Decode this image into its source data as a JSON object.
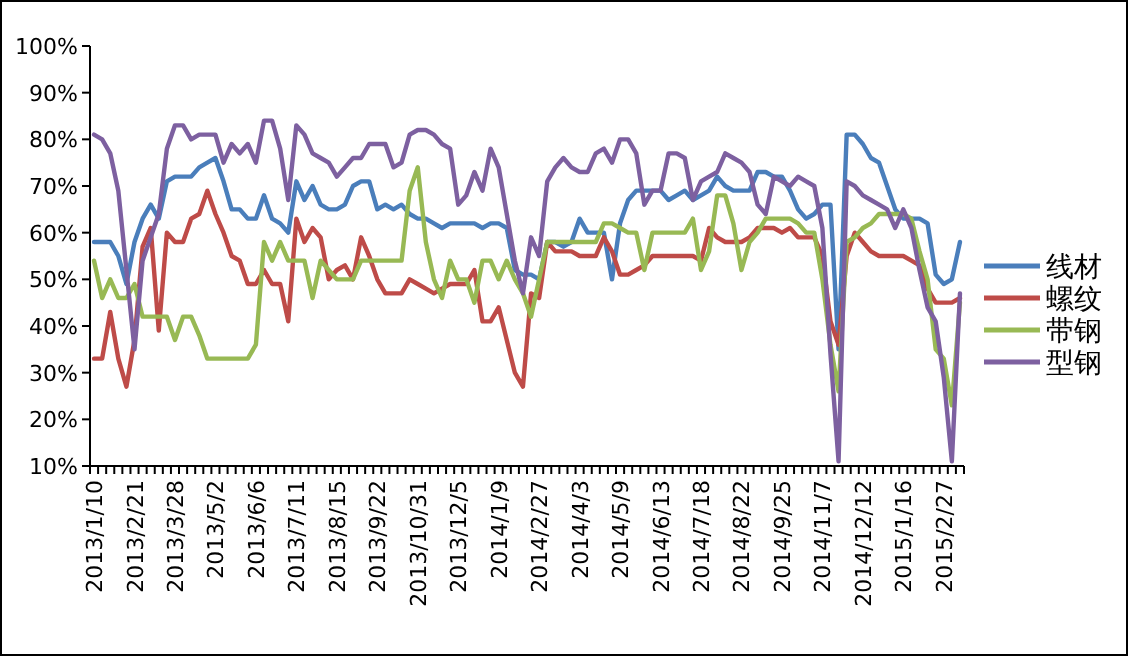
{
  "chart_data": {
    "type": "line",
    "categories": [
      "2013/1/10",
      null,
      null,
      null,
      null,
      "2013/2/21",
      null,
      null,
      null,
      null,
      "2013/3/28",
      null,
      null,
      null,
      null,
      "2013/5/2",
      null,
      null,
      null,
      null,
      "2013/6/6",
      null,
      null,
      null,
      null,
      "2013/7/11",
      null,
      null,
      null,
      null,
      "2013/8/15",
      null,
      null,
      null,
      null,
      "2013/9/22",
      null,
      null,
      null,
      null,
      "2013/10/31",
      null,
      null,
      null,
      null,
      "2013/12/5",
      null,
      null,
      null,
      null,
      "2014/1/9",
      null,
      null,
      null,
      null,
      "2014/2/27",
      null,
      null,
      null,
      null,
      "2014/4/3",
      null,
      null,
      null,
      null,
      "2014/5/9",
      null,
      null,
      null,
      null,
      "2014/6/13",
      null,
      null,
      null,
      null,
      "2014/7/18",
      null,
      null,
      null,
      null,
      "2014/8/22",
      null,
      null,
      null,
      null,
      "2014/9/25",
      null,
      null,
      null,
      null,
      "2014/11/7",
      null,
      null,
      null,
      null,
      "2014/12/12",
      null,
      null,
      null,
      null,
      "2015/1/16",
      null,
      null,
      null,
      null,
      "2015/2/27",
      null,
      null
    ],
    "series": [
      {
        "name": "线材",
        "color": "#4a7ebb",
        "values": [
          58,
          58,
          58,
          55,
          49,
          58,
          63,
          66,
          63,
          71,
          72,
          72,
          72,
          74,
          75,
          76,
          71,
          65,
          65,
          63,
          63,
          68,
          63,
          62,
          60,
          71,
          67,
          70,
          66,
          65,
          65,
          66,
          70,
          71,
          71,
          65,
          66,
          65,
          66,
          64,
          63,
          63,
          62,
          61,
          62,
          62,
          62,
          62,
          61,
          62,
          62,
          61,
          52,
          51,
          51,
          50,
          58,
          58,
          57,
          58,
          63,
          60,
          60,
          60,
          50,
          62,
          67,
          69,
          69,
          69,
          69,
          67,
          68,
          69,
          67,
          68,
          69,
          72,
          70,
          69,
          69,
          69,
          73,
          73,
          72,
          72,
          69,
          65,
          63,
          64,
          66,
          66,
          35,
          81,
          81,
          79,
          76,
          75,
          70,
          65,
          63,
          63,
          63,
          62,
          51,
          49,
          50,
          58
        ]
      },
      {
        "name": "螺纹",
        "color": "#be4b48",
        "values": [
          33,
          33,
          43,
          33,
          27,
          37,
          57,
          61,
          39,
          60,
          58,
          58,
          63,
          64,
          69,
          64,
          60,
          55,
          54,
          49,
          49,
          52,
          49,
          49,
          41,
          63,
          58,
          61,
          59,
          50,
          52,
          53,
          50,
          59,
          55,
          50,
          47,
          47,
          47,
          50,
          49,
          48,
          47,
          48,
          49,
          49,
          49,
          52,
          41,
          41,
          44,
          37,
          30,
          27,
          47,
          46,
          58,
          56,
          56,
          56,
          55,
          55,
          55,
          59,
          56,
          51,
          51,
          52,
          53,
          55,
          55,
          55,
          55,
          55,
          55,
          54,
          61,
          59,
          58,
          58,
          58,
          59,
          61,
          61,
          61,
          60,
          61,
          59,
          59,
          59,
          55,
          41,
          36,
          55,
          60,
          58,
          56,
          55,
          55,
          55,
          55,
          54,
          53,
          48,
          45,
          45,
          45,
          46
        ]
      },
      {
        "name": "带钢",
        "color": "#98b954",
        "values": [
          54,
          46,
          50,
          46,
          46,
          49,
          42,
          42,
          42,
          42,
          37,
          42,
          42,
          38,
          33,
          33,
          33,
          33,
          33,
          33,
          36,
          58,
          54,
          58,
          54,
          54,
          54,
          46,
          54,
          52,
          50,
          50,
          50,
          54,
          54,
          54,
          54,
          54,
          54,
          69,
          74,
          58,
          50,
          46,
          54,
          50,
          50,
          45,
          54,
          54,
          50,
          54,
          50,
          47,
          42,
          50,
          58,
          58,
          58,
          58,
          58,
          58,
          58,
          62,
          62,
          61,
          60,
          60,
          52,
          60,
          60,
          60,
          60,
          60,
          63,
          52,
          56,
          68,
          68,
          62,
          52,
          58,
          60,
          63,
          63,
          63,
          63,
          62,
          60,
          60,
          50,
          36,
          26,
          58,
          59,
          61,
          62,
          64,
          64,
          64,
          64,
          63,
          56,
          50,
          35,
          33,
          23,
          45
        ]
      },
      {
        "name": "型钢",
        "color": "#7d60a0",
        "values": [
          81,
          80,
          77,
          69,
          52,
          35,
          54,
          59,
          64,
          78,
          83,
          83,
          80,
          81,
          81,
          81,
          75,
          79,
          77,
          79,
          75,
          84,
          84,
          78,
          67,
          83,
          81,
          77,
          76,
          75,
          72,
          74,
          76,
          76,
          79,
          79,
          79,
          74,
          75,
          81,
          82,
          82,
          81,
          79,
          78,
          66,
          68,
          73,
          69,
          78,
          74,
          64,
          54,
          47,
          59,
          55,
          71,
          74,
          76,
          74,
          73,
          73,
          77,
          78,
          75,
          80,
          80,
          77,
          66,
          69,
          69,
          77,
          77,
          76,
          67,
          71,
          72,
          73,
          77,
          76,
          75,
          73,
          66,
          64,
          72,
          71,
          70,
          72,
          71,
          70,
          61,
          34,
          11,
          71,
          70,
          68,
          67,
          66,
          65,
          61,
          65,
          61,
          52,
          44,
          41,
          29,
          11,
          47
        ]
      }
    ],
    "ylim": [
      10,
      100
    ],
    "yticks": [
      {
        "value": 10,
        "label": "10%"
      },
      {
        "value": 20,
        "label": "20%"
      },
      {
        "value": 30,
        "label": "30%"
      },
      {
        "value": 40,
        "label": "40%"
      },
      {
        "value": 50,
        "label": "50%"
      },
      {
        "value": 60,
        "label": "60%"
      },
      {
        "value": 70,
        "label": "70%"
      },
      {
        "value": 80,
        "label": "80%"
      },
      {
        "value": 90,
        "label": "90%"
      },
      {
        "value": 100,
        "label": "100%"
      }
    ],
    "legend": "right"
  }
}
